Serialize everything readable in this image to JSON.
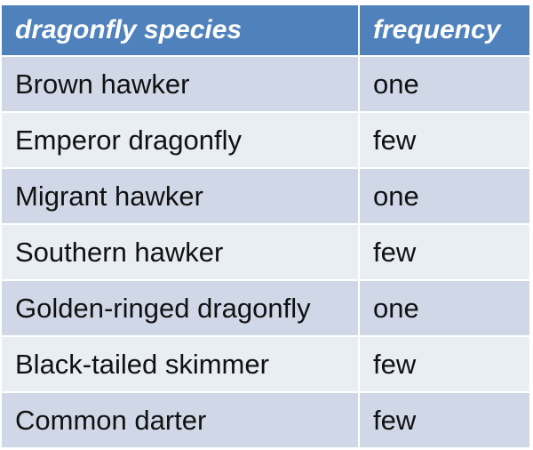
{
  "table": {
    "headers": {
      "species": "dragonfly species",
      "frequency": "frequency"
    },
    "rows": [
      {
        "species": "Brown hawker",
        "frequency": "one"
      },
      {
        "species": "Emperor dragonfly",
        "frequency": "few"
      },
      {
        "species": "Migrant hawker",
        "frequency": "one"
      },
      {
        "species": "Southern hawker",
        "frequency": "few"
      },
      {
        "species": "Golden-ringed dragonfly",
        "frequency": "one"
      },
      {
        "species": "Black-tailed skimmer",
        "frequency": "few"
      },
      {
        "species": "Common darter",
        "frequency": "few"
      }
    ],
    "colors": {
      "header_bg": "#4f81bd",
      "row_odd_bg": "#d0d8e8",
      "row_even_bg": "#e9edf4",
      "header_text": "#ffffff"
    }
  }
}
